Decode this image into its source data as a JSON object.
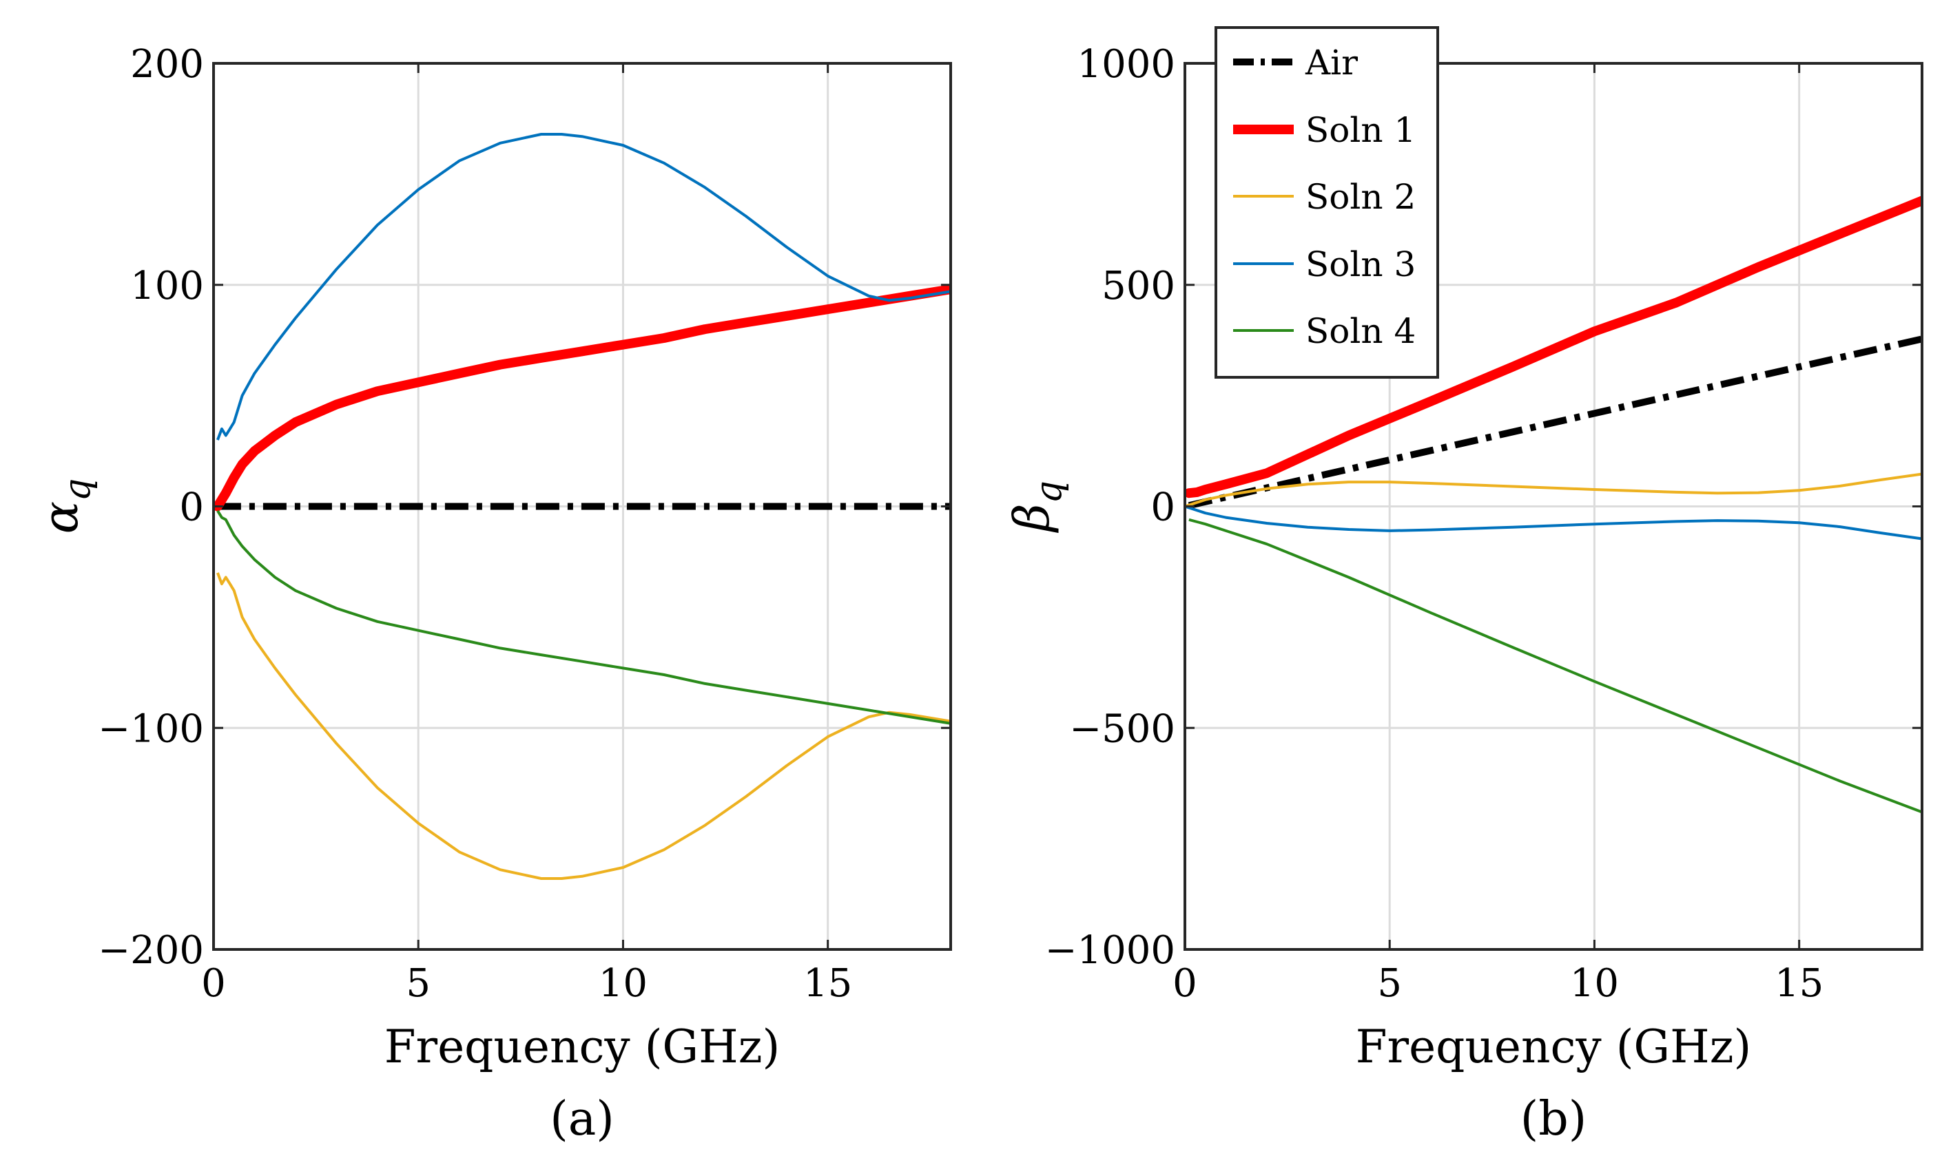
{
  "panels": [
    {
      "panel_label": "(a)",
      "panel_letter": "a",
      "ylabel_symbol": "α",
      "ylabel_sub": "q"
    },
    {
      "panel_label": "(b)",
      "panel_letter": "b",
      "ylabel_symbol": "β",
      "ylabel_sub": "q"
    }
  ],
  "colors": {
    "air": "#000000",
    "soln1": "#ff0000",
    "soln2": "#edb120",
    "soln3": "#0072bd",
    "soln4": "#2a8a1a",
    "grid": "#dcdcdc"
  },
  "chart_data": [
    {
      "type": "line",
      "title": "(a)",
      "xlabel": "Frequency (GHz)",
      "ylabel": "α_q",
      "xlim": [
        0,
        18
      ],
      "ylim": [
        -200,
        200
      ],
      "xticks": [
        0,
        5,
        10,
        15
      ],
      "xtick_labels": [
        "0",
        "5",
        "10",
        "15"
      ],
      "yticks": [
        -200,
        -100,
        0,
        100,
        200
      ],
      "ytick_labels": [
        "−200",
        "−100",
        "0",
        "100",
        "200"
      ],
      "grid": true,
      "legend": false,
      "series": [
        {
          "name": "Air",
          "key": "air",
          "style": "dashdot",
          "x": [
            0.1,
            18
          ],
          "y": [
            0,
            0
          ]
        },
        {
          "name": "Soln 1",
          "key": "soln1",
          "style": "solid-thick",
          "x": [
            0.1,
            0.2,
            0.3,
            0.5,
            0.7,
            1,
            1.5,
            2,
            3,
            4,
            5,
            6,
            7,
            8,
            9,
            10,
            11,
            12,
            13,
            14,
            15,
            16,
            17,
            18
          ],
          "y": [
            0,
            3,
            6,
            13,
            19,
            25,
            32,
            38,
            46,
            52,
            56,
            60,
            64,
            67,
            70,
            73,
            76,
            80,
            83,
            86,
            89,
            92,
            95,
            98
          ]
        },
        {
          "name": "Soln 2",
          "key": "soln2",
          "style": "solid",
          "x": [
            0.1,
            0.2,
            0.3,
            0.4,
            0.5,
            0.7,
            1,
            1.5,
            2,
            3,
            4,
            5,
            6,
            7,
            8,
            8.5,
            9,
            10,
            11,
            12,
            13,
            14,
            15,
            16,
            16.5,
            17,
            18
          ],
          "y": [
            -30,
            -35,
            -32,
            -35,
            -38,
            -50,
            -60,
            -73,
            -85,
            -107,
            -127,
            -143,
            -156,
            -164,
            -168,
            -168,
            -167,
            -163,
            -155,
            -144,
            -131,
            -117,
            -104,
            -95,
            -93,
            -94,
            -97
          ]
        },
        {
          "name": "Soln 3",
          "key": "soln3",
          "style": "solid",
          "x": [
            0.1,
            0.2,
            0.3,
            0.4,
            0.5,
            0.7,
            1,
            1.5,
            2,
            3,
            4,
            5,
            6,
            7,
            8,
            8.5,
            9,
            10,
            11,
            12,
            13,
            14,
            15,
            16,
            16.5,
            17,
            18
          ],
          "y": [
            30,
            35,
            32,
            35,
            38,
            50,
            60,
            73,
            85,
            107,
            127,
            143,
            156,
            164,
            168,
            168,
            167,
            163,
            155,
            144,
            131,
            117,
            104,
            95,
            93,
            94,
            97
          ]
        },
        {
          "name": "Soln 4",
          "key": "soln4",
          "style": "solid",
          "x": [
            0.1,
            0.2,
            0.3,
            0.5,
            0.7,
            1,
            1.5,
            2,
            3,
            4,
            5,
            6,
            7,
            8,
            9,
            10,
            11,
            12,
            13,
            14,
            15,
            16,
            17,
            18
          ],
          "y": [
            -2,
            -5,
            -6,
            -13,
            -18,
            -24,
            -32,
            -38,
            -46,
            -52,
            -56,
            -60,
            -64,
            -67,
            -70,
            -73,
            -76,
            -80,
            -83,
            -86,
            -89,
            -92,
            -95,
            -98
          ]
        }
      ]
    },
    {
      "type": "line",
      "title": "(b)",
      "xlabel": "Frequency (GHz)",
      "ylabel": "β_q",
      "xlim": [
        0,
        18
      ],
      "ylim": [
        -1000,
        1000
      ],
      "xticks": [
        0,
        5,
        10,
        15
      ],
      "xtick_labels": [
        "0",
        "5",
        "10",
        "15"
      ],
      "yticks": [
        -1000,
        -500,
        0,
        500,
        1000
      ],
      "ytick_labels": [
        "−1000",
        "−500",
        "0",
        "500",
        "1000"
      ],
      "grid": true,
      "legend": true,
      "legend_position": "top-left",
      "series": [
        {
          "name": "Air",
          "key": "air",
          "style": "dashdot",
          "x": [
            0.1,
            18
          ],
          "y": [
            2,
            378
          ]
        },
        {
          "name": "Soln 1",
          "key": "soln1",
          "style": "solid-thick",
          "x": [
            0.1,
            0.3,
            0.5,
            1,
            2,
            4,
            6,
            8,
            10,
            12,
            14,
            16,
            18
          ],
          "y": [
            30,
            32,
            38,
            50,
            75,
            160,
            237,
            315,
            395,
            460,
            540,
            615,
            690
          ]
        },
        {
          "name": "Soln 2",
          "key": "soln2",
          "style": "solid",
          "x": [
            0,
            0.5,
            1,
            2,
            3,
            4,
            5,
            6,
            8,
            10,
            12,
            13,
            14,
            15,
            16,
            17,
            18
          ],
          "y": [
            0,
            15,
            25,
            40,
            50,
            55,
            55,
            52,
            45,
            38,
            32,
            30,
            31,
            36,
            46,
            60,
            73
          ]
        },
        {
          "name": "Soln 3",
          "key": "soln3",
          "style": "solid",
          "x": [
            0,
            0.5,
            1,
            2,
            3,
            4,
            5,
            6,
            8,
            10,
            12,
            13,
            14,
            15,
            16,
            17,
            18
          ],
          "y": [
            0,
            -15,
            -25,
            -38,
            -47,
            -52,
            -55,
            -53,
            -47,
            -40,
            -34,
            -32,
            -33,
            -37,
            -46,
            -60,
            -73
          ]
        },
        {
          "name": "Soln 4",
          "key": "soln4",
          "style": "solid",
          "x": [
            0.1,
            0.3,
            0.5,
            1,
            2,
            4,
            6,
            8,
            10,
            12,
            14,
            16,
            18
          ],
          "y": [
            -30,
            -35,
            -40,
            -55,
            -85,
            -160,
            -240,
            -318,
            -395,
            -470,
            -545,
            -620,
            -690
          ]
        }
      ]
    }
  ]
}
